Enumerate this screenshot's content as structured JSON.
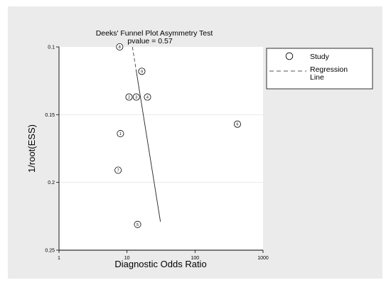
{
  "chart_data": {
    "type": "scatter",
    "title": "Deeks' Funnel Plot Asymmetry Test",
    "subtitle": "pvalue =   0.57",
    "xlabel": "Diagnostic Odds Ratio",
    "ylabel": "1/root(ESS)",
    "x_scale": "log",
    "xlim": [
      1,
      1000
    ],
    "ylim": [
      0.1,
      0.25
    ],
    "y_reversed": true,
    "x_ticks": [
      1,
      10,
      100,
      1000
    ],
    "x_tick_labels": [
      "1",
      "10",
      "100",
      "1000"
    ],
    "y_ticks": [
      0.1,
      0.15,
      0.2,
      0.25
    ],
    "y_tick_labels": [
      "0.1",
      "0.15",
      "0.2",
      "0.25"
    ],
    "grid": true,
    "legend": {
      "placement": "right",
      "entries": [
        {
          "label": "Study"
        },
        {
          "label_lines": [
            "Regression",
            "Line"
          ]
        }
      ]
    },
    "series": [
      {
        "name": "Study",
        "points": [
          {
            "label": "8",
            "x": 7.8,
            "y": 0.1
          },
          {
            "label": "9",
            "x": 16.5,
            "y": 0.118
          },
          {
            "label": "2",
            "x": 10.7,
            "y": 0.137
          },
          {
            "label": "3",
            "x": 13.7,
            "y": 0.137
          },
          {
            "label": "4",
            "x": 20.0,
            "y": 0.137
          },
          {
            "label": "6",
            "x": 420,
            "y": 0.157
          },
          {
            "label": "1",
            "x": 8.0,
            "y": 0.164
          },
          {
            "label": "7",
            "x": 7.4,
            "y": 0.191
          },
          {
            "label": "5",
            "x": 14.3,
            "y": 0.231
          }
        ]
      },
      {
        "name": "Regression Line",
        "line": [
          {
            "x": 12.0,
            "y": 0.1
          },
          {
            "x": 31.0,
            "y": 0.229
          }
        ]
      }
    ]
  }
}
